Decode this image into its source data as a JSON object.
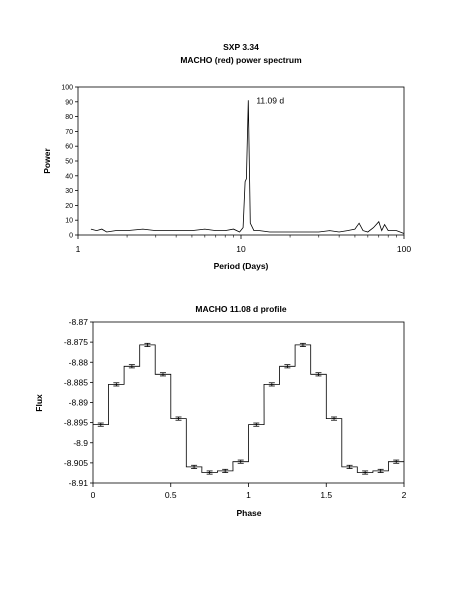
{
  "chart_data": [
    {
      "type": "line",
      "title": "SXP 3.34",
      "subtitle": "MACHO (red) power spectrum",
      "xlabel": "Period (Days)",
      "ylabel": "Power",
      "xscale": "log",
      "xlim": [
        1,
        100
      ],
      "ylim": [
        0,
        100
      ],
      "xticks": [
        "1",
        "10",
        "100"
      ],
      "yticks": [
        "0",
        "10",
        "20",
        "30",
        "40",
        "50",
        "60",
        "70",
        "80",
        "90",
        "100"
      ],
      "grid": false,
      "annotation": {
        "text": "11.09 d",
        "x": 11.09,
        "y": 91
      },
      "series": [
        {
          "x": [
            1.2,
            1.3,
            1.4,
            1.5,
            1.7,
            2.0,
            2.5,
            3.0,
            4.0,
            5.0,
            6.0,
            7.0,
            8.0,
            9.0,
            9.8,
            10.3,
            10.6,
            10.8,
            11.09,
            11.4,
            12.0,
            13.0,
            15.0,
            20.0,
            25.0,
            30.0,
            35.0,
            40.0,
            45.0,
            50.0,
            53.0,
            56.0,
            60.0,
            65.0,
            70.0,
            73.0,
            76.0,
            80.0,
            90.0,
            100.0
          ],
          "y": [
            4,
            3,
            4,
            2,
            3,
            3,
            4,
            3,
            3,
            3,
            4,
            3,
            3,
            4,
            2,
            5,
            36,
            38,
            91,
            8,
            3,
            3,
            2,
            2,
            2,
            2,
            3,
            2,
            3,
            4,
            8,
            3,
            2,
            5,
            9,
            3,
            7,
            3,
            3,
            1
          ]
        }
      ]
    },
    {
      "type": "line",
      "title": "MACHO 11.08 d profile",
      "xlabel": "Phase",
      "ylabel": "Flux",
      "xlim": [
        0,
        2
      ],
      "ylim": [
        -8.91,
        -8.87
      ],
      "xticks": [
        "0",
        "0.5",
        "1",
        "1.5",
        "2"
      ],
      "yticks": [
        "-8.87",
        "-8.875",
        "-8.88",
        "-8.885",
        "-8.89",
        "-8.895",
        "-8.9",
        "-8.905",
        "-8.91"
      ],
      "grid": false,
      "step": true,
      "series": [
        {
          "x": [
            0.05,
            0.15,
            0.25,
            0.35,
            0.45,
            0.55,
            0.65,
            0.75,
            0.85,
            0.95,
            1.05,
            1.15,
            1.25,
            1.35,
            1.45,
            1.55,
            1.65,
            1.75,
            1.85,
            1.95
          ],
          "y": [
            -8.8955,
            -8.8855,
            -8.881,
            -8.8757,
            -8.883,
            -8.894,
            -8.906,
            -8.9074,
            -8.907,
            -8.9047,
            -8.8955,
            -8.8855,
            -8.881,
            -8.8757,
            -8.883,
            -8.894,
            -8.906,
            -8.9074,
            -8.907,
            -8.9047
          ],
          "error": [
            0.0004,
            0.0004,
            0.0004,
            0.0004,
            0.0004,
            0.0004,
            0.0004,
            0.0004,
            0.0004,
            0.0004,
            0.0004,
            0.0004,
            0.0004,
            0.0004,
            0.0004,
            0.0004,
            0.0004,
            0.0004,
            0.0004,
            0.0004
          ]
        }
      ]
    }
  ]
}
